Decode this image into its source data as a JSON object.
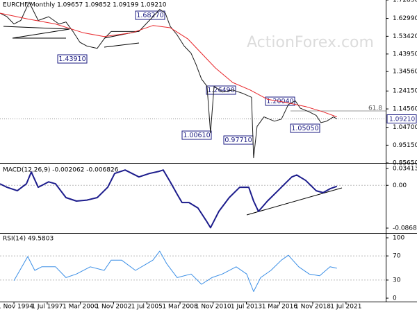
{
  "chart_data": [
    {
      "type": "line",
      "title": "EURCHF,Monthly  1.09657 1.09852 1.09199 1.09210",
      "watermark": "ActionForex.com",
      "ylim": [
        0.8565,
        1.7285
      ],
      "yticks": [
        {
          "value": 1.7285,
          "label": "1.72850"
        },
        {
          "value": 1.6299,
          "label": "1.62990"
        },
        {
          "value": 1.5342,
          "label": "1.53420"
        },
        {
          "value": 1.4395,
          "label": "1.43950"
        },
        {
          "value": 1.3456,
          "label": "1.34560"
        },
        {
          "value": 1.2415,
          "label": "1.24150"
        },
        {
          "value": 1.1456,
          "label": "1.14560"
        },
        {
          "value": 1.047,
          "label": "1.04700"
        },
        {
          "value": 0.9515,
          "label": "0.95150"
        },
        {
          "value": 0.8565,
          "label": "0.85650"
        }
      ],
      "grid": false,
      "last_price": {
        "value": 1.0921,
        "label": "1.09210"
      },
      "fib_label": "61.8",
      "annotations": [
        "1.68270",
        "1.43910",
        "1.26490",
        "1.00610",
        "0.97710",
        "1.20040",
        "1.05050"
      ],
      "series": [
        {
          "color": "#1a1a1a",
          "width": 1,
          "x": [
            1993.71,
            1994.27,
            1994.83,
            1995.38,
            1996.05,
            1996.78,
            1997.62,
            1998.45,
            1999.01,
            1999.57,
            2000.13,
            2000.69,
            2001.52,
            2002.08,
            2002.64,
            2003.48,
            2004.31,
            2004.87,
            2005.43,
            2005.99,
            2006.54,
            2006.99,
            2007.38,
            2007.94,
            2008.5,
            2009.06,
            2009.45,
            2009.89,
            2010.34,
            2010.62,
            2010.9,
            2011.57,
            2012.4,
            2013.24,
            2013.91,
            2014.08,
            2014.36,
            2014.91,
            2015.75,
            2016.31,
            2016.87,
            2017.43,
            2017.82,
            2018.54,
            2019.1,
            2019.49,
            2019.94,
            2020.49,
            2020.77
          ],
          "values": [
            1.658,
            1.639,
            1.6,
            1.619,
            1.717,
            1.619,
            1.639,
            1.6,
            1.611,
            1.56,
            1.502,
            1.482,
            1.47,
            1.521,
            1.56,
            1.56,
            1.56,
            1.56,
            1.6,
            1.639,
            1.678,
            1.658,
            1.588,
            1.541,
            1.482,
            1.443,
            1.384,
            1.306,
            1.267,
            1.017,
            1.267,
            1.236,
            1.247,
            1.228,
            1.208,
            0.884,
            1.052,
            1.103,
            1.08,
            1.091,
            1.169,
            1.189,
            1.15,
            1.13,
            1.111,
            1.072,
            1.08,
            1.103,
            1.0921
          ]
        },
        {
          "color": "#e8262a",
          "width": 1,
          "x": [
            1993.71,
            1995.94,
            1998.17,
            2000.41,
            2002.08,
            2004.31,
            2005.99,
            2007.38,
            2008.78,
            2009.89,
            2011.01,
            2012.4,
            2013.8,
            2015.19,
            2016.59,
            2018.26,
            2019.66,
            2020.77
          ],
          "values": [
            1.658,
            1.627,
            1.6,
            1.553,
            1.533,
            1.553,
            1.592,
            1.58,
            1.521,
            1.443,
            1.365,
            1.287,
            1.247,
            1.197,
            1.181,
            1.158,
            1.13,
            1.103
          ]
        }
      ]
    },
    {
      "type": "line",
      "title": "MACD(12,26,9) -0.002062 -0.006826",
      "ylim": [
        -0.0953,
        0.0426
      ],
      "yticks": [
        0.034137,
        {
          "value": 0,
          "label": "0.00"
        },
        -0.086849
      ],
      "grid": true,
      "series": [
        {
          "color": "#1c1c8c",
          "width": 2,
          "x": [
            1993.71,
            1994.27,
            1995.1,
            1995.83,
            1996.22,
            1996.78,
            1997.62,
            1998.17,
            1999.01,
            1999.85,
            2000.69,
            2001.52,
            2002.36,
            2002.92,
            2003.76,
            2004.87,
            2005.71,
            2006.43,
            2006.82,
            2007.38,
            2007.94,
            2008.33,
            2008.89,
            2009.61,
            2010.28,
            2010.62,
            2011.29,
            2012.12,
            2012.96,
            2013.69,
            2014.08,
            2014.47,
            2015.19,
            2016.03,
            2016.59,
            2017.15,
            2017.54,
            2018.26,
            2019.1,
            2019.66,
            2020.22,
            2020.77
          ],
          "values": [
            0.003,
            -0.004,
            -0.011,
            0.003,
            0.027,
            -0.004,
            0.007,
            0.003,
            -0.025,
            -0.032,
            -0.03,
            -0.025,
            -0.004,
            0.024,
            0.031,
            0.017,
            0.024,
            0.028,
            0.031,
            0.007,
            -0.018,
            -0.035,
            -0.035,
            -0.046,
            -0.072,
            -0.086,
            -0.053,
            -0.025,
            -0.004,
            -0.004,
            -0.032,
            -0.053,
            -0.032,
            -0.011,
            0.003,
            0.017,
            0.021,
            0.01,
            -0.011,
            -0.015,
            -0.007,
            -0.002
          ]
        }
      ]
    },
    {
      "type": "line",
      "title": "RSI(14) 49.5803",
      "ylim": [
        -5.7,
        106.9
      ],
      "yticks": [
        100,
        70,
        30,
        0
      ],
      "grid": true,
      "xlim": [
        1993.71,
        2024.69
      ],
      "xticks": [
        {
          "value": 1994.83,
          "label": "1 Nov 1994"
        },
        {
          "value": 1997.5,
          "label": "1 Jul 1997"
        },
        {
          "value": 2000.17,
          "label": "1 Mar 2000"
        },
        {
          "value": 2002.83,
          "label": "1 Nov 2002"
        },
        {
          "value": 2005.5,
          "label": "1 Jul 2005"
        },
        {
          "value": 2008.17,
          "label": "1 Mar 2008"
        },
        {
          "value": 2010.83,
          "label": "1 Nov 2010"
        },
        {
          "value": 2013.5,
          "label": "1 Jul 2013"
        },
        {
          "value": 2016.17,
          "label": "1 Mar 2016"
        },
        {
          "value": 2018.83,
          "label": "1 Nov 2018"
        },
        {
          "value": 2021.5,
          "label": "1 Jul 2021"
        }
      ],
      "series": [
        {
          "color": "#3a8ee6",
          "width": 1,
          "x": [
            1994.83,
            1995.94,
            1996.5,
            1997.06,
            1998.17,
            1999.01,
            1999.85,
            2000.96,
            2002.08,
            2002.64,
            2003.48,
            2004.59,
            2005.99,
            2006.54,
            2007.1,
            2007.94,
            2009.06,
            2009.89,
            2010.73,
            2011.57,
            2012.68,
            2013.52,
            2014.08,
            2014.64,
            2015.47,
            2016.31,
            2016.87,
            2017.7,
            2018.54,
            2019.38,
            2020.22,
            2020.77
          ],
          "values": [
            29,
            69,
            46,
            52,
            52,
            34,
            40,
            52,
            46,
            63,
            63,
            46,
            63,
            78,
            57,
            34,
            40,
            23,
            34,
            40,
            52,
            40,
            11,
            34,
            46,
            63,
            71,
            52,
            40,
            37,
            52,
            49.58
          ]
        }
      ]
    }
  ]
}
